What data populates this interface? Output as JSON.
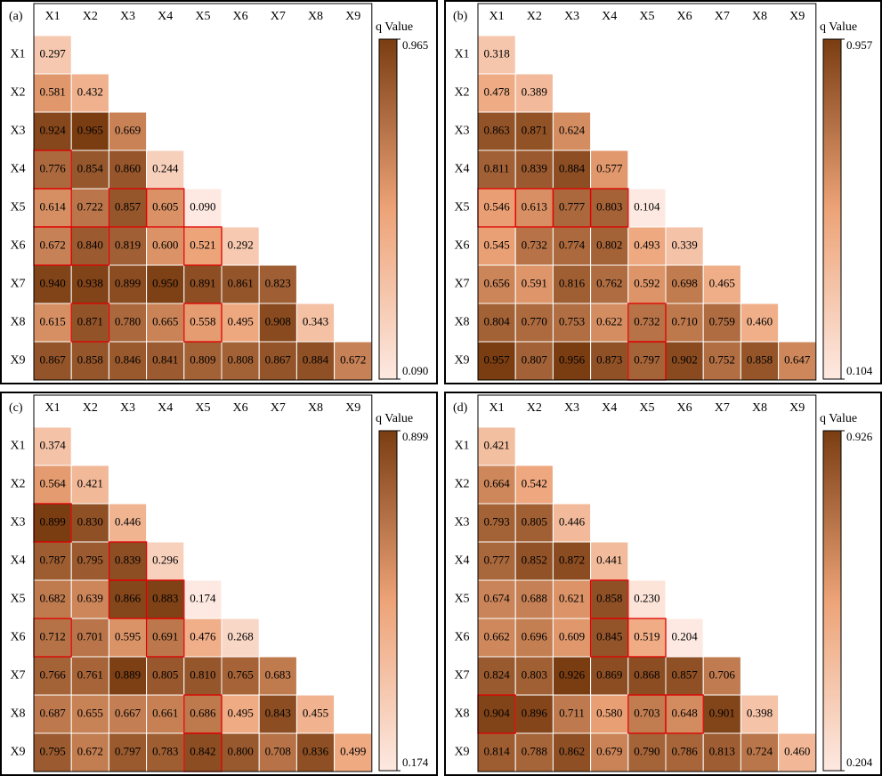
{
  "chart_data": [
    {
      "type": "heatmap",
      "label": "(a)",
      "categories": [
        "X1",
        "X2",
        "X3",
        "X4",
        "X5",
        "X6",
        "X7",
        "X8",
        "X9"
      ],
      "colorbar_label": "q Value",
      "colors": [
        "#fde9e1",
        "#eda377",
        "#7a3d12"
      ],
      "clim": [
        0.09,
        0.965
      ],
      "cticks": [
        {
          "value": 0.965,
          "label": "0.965"
        },
        {
          "value": 0.09,
          "label": "0.090"
        }
      ],
      "values": [
        [
          0.297
        ],
        [
          0.581,
          0.432
        ],
        [
          0.924,
          0.965,
          0.669
        ],
        [
          0.776,
          0.854,
          0.86,
          0.244
        ],
        [
          0.614,
          0.722,
          0.857,
          0.605,
          0.09
        ],
        [
          0.672,
          0.84,
          0.819,
          0.6,
          0.521,
          0.292
        ],
        [
          0.94,
          0.938,
          0.899,
          0.95,
          0.891,
          0.861,
          0.823
        ],
        [
          0.615,
          0.871,
          0.78,
          0.665,
          0.558,
          0.495,
          0.908,
          0.343
        ],
        [
          0.867,
          0.858,
          0.846,
          0.841,
          0.809,
          0.808,
          0.867,
          0.884,
          0.672
        ]
      ],
      "value_labels": [
        [
          "0.297"
        ],
        [
          "0.581",
          "0.432"
        ],
        [
          "0.924",
          "0.965",
          "0.669"
        ],
        [
          "0.776",
          "0.854",
          "0.860",
          "0.244"
        ],
        [
          "0.614",
          "0.722",
          "0.857",
          "0.605",
          "0.090"
        ],
        [
          "0.672",
          "0.840",
          "0.819",
          "0.600",
          "0.521",
          "0.292"
        ],
        [
          "0.940",
          "0.938",
          "0.899",
          "0.950",
          "0.891",
          "0.861",
          "0.823"
        ],
        [
          "0.615",
          "0.871",
          "0.780",
          "0.665",
          "0.558",
          "0.495",
          "0.908",
          "0.343"
        ],
        [
          "0.867",
          "0.858",
          "0.846",
          "0.841",
          "0.809",
          "0.808",
          "0.867",
          "0.884",
          "0.672"
        ]
      ],
      "highlighted": [
        [
          3,
          0
        ],
        [
          4,
          0
        ],
        [
          5,
          0
        ],
        [
          5,
          1
        ],
        [
          4,
          2
        ],
        [
          4,
          3
        ],
        [
          5,
          4
        ],
        [
          7,
          1
        ],
        [
          7,
          4
        ]
      ]
    },
    {
      "type": "heatmap",
      "label": "(b)",
      "categories": [
        "X1",
        "X2",
        "X3",
        "X4",
        "X5",
        "X6",
        "X7",
        "X8",
        "X9"
      ],
      "colorbar_label": "q Value",
      "colors": [
        "#fde9e1",
        "#eda377",
        "#7a3d12"
      ],
      "clim": [
        0.104,
        0.957
      ],
      "cticks": [
        0.957,
        0.104
      ],
      "values": [
        [
          0.318
        ],
        [
          0.478,
          0.389
        ],
        [
          0.863,
          0.871,
          0.624
        ],
        [
          0.811,
          0.839,
          0.884,
          0.577
        ],
        [
          0.546,
          0.613,
          0.777,
          0.803,
          0.104
        ],
        [
          0.545,
          0.732,
          0.774,
          0.802,
          0.493,
          0.339
        ],
        [
          0.656,
          0.591,
          0.816,
          0.762,
          0.592,
          0.698,
          0.465
        ],
        [
          0.804,
          0.77,
          0.753,
          0.622,
          0.732,
          0.71,
          0.759,
          0.46
        ],
        [
          0.957,
          0.807,
          0.956,
          0.873,
          0.797,
          0.902,
          0.752,
          0.858,
          0.647
        ]
      ],
      "value_labels": [
        [
          "0.318"
        ],
        [
          "0.478",
          "0.389"
        ],
        [
          "0.863",
          "0.871",
          "0.624"
        ],
        [
          "0.811",
          "0.839",
          "0.884",
          "0.577"
        ],
        [
          "0.546",
          "0.613",
          "0.777",
          "0.803",
          "0.104"
        ],
        [
          "0.545",
          "0.732",
          "0.774",
          "0.802",
          "0.493",
          "0.339"
        ],
        [
          "0.656",
          "0.591",
          "0.816",
          "0.762",
          "0.592",
          "0.698",
          "0.465"
        ],
        [
          "0.804",
          "0.770",
          "0.753",
          "0.622",
          "0.732",
          "0.710",
          "0.759",
          "0.460"
        ],
        [
          "0.957",
          "0.807",
          "0.956",
          "0.873",
          "0.797",
          "0.902",
          "0.752",
          "0.858",
          "0.647"
        ]
      ],
      "highlighted": [
        [
          4,
          0
        ],
        [
          4,
          1
        ],
        [
          4,
          2
        ],
        [
          4,
          3
        ],
        [
          7,
          4
        ],
        [
          8,
          4
        ]
      ]
    },
    {
      "type": "heatmap",
      "label": "(c)",
      "categories": [
        "X1",
        "X2",
        "X3",
        "X4",
        "X5",
        "X6",
        "X7",
        "X8",
        "X9"
      ],
      "colorbar_label": "q Value",
      "colors": [
        "#fde9e1",
        "#eda377",
        "#7a3d12"
      ],
      "clim": [
        0.174,
        0.899
      ],
      "cticks": [
        0.899,
        0.174
      ],
      "values": [
        [
          0.374
        ],
        [
          0.564,
          0.421
        ],
        [
          0.899,
          0.83,
          0.446
        ],
        [
          0.787,
          0.795,
          0.839,
          0.296
        ],
        [
          0.682,
          0.639,
          0.866,
          0.883,
          0.174
        ],
        [
          0.712,
          0.701,
          0.595,
          0.691,
          0.476,
          0.268
        ],
        [
          0.766,
          0.761,
          0.889,
          0.805,
          0.81,
          0.765,
          0.683
        ],
        [
          0.687,
          0.655,
          0.667,
          0.661,
          0.686,
          0.495,
          0.843,
          0.455
        ],
        [
          0.795,
          0.672,
          0.797,
          0.783,
          0.842,
          0.8,
          0.708,
          0.836,
          0.499
        ]
      ],
      "value_labels": [
        [
          "0.374"
        ],
        [
          "0.564",
          "0.421"
        ],
        [
          "0.899",
          "0.830",
          "0.446"
        ],
        [
          "0.787",
          "0.795",
          "0.839",
          "0.296"
        ],
        [
          "0.682",
          "0.639",
          "0.866",
          "0.883",
          "0.174"
        ],
        [
          "0.712",
          "0.701",
          "0.595",
          "0.691",
          "0.476",
          "0.268"
        ],
        [
          "0.766",
          "0.761",
          "0.889",
          "0.805",
          "0.810",
          "0.765",
          "0.683"
        ],
        [
          "0.687",
          "0.655",
          "0.667",
          "0.661",
          "0.686",
          "0.495",
          "0.843",
          "0.455"
        ],
        [
          "0.795",
          "0.672",
          "0.797",
          "0.783",
          "0.842",
          "0.800",
          "0.708",
          "0.836",
          "0.499"
        ]
      ],
      "highlighted": [
        [
          2,
          0
        ],
        [
          3,
          2
        ],
        [
          4,
          2
        ],
        [
          4,
          3
        ],
        [
          5,
          0
        ],
        [
          5,
          3
        ],
        [
          7,
          4
        ],
        [
          8,
          4
        ]
      ]
    },
    {
      "type": "heatmap",
      "label": "(d)",
      "categories": [
        "X1",
        "X2",
        "X3",
        "X4",
        "X5",
        "X6",
        "X7",
        "X8",
        "X9"
      ],
      "colorbar_label": "q Value",
      "colors": [
        "#fde9e1",
        "#eda377",
        "#7a3d12"
      ],
      "clim": [
        0.204,
        0.926
      ],
      "cticks": [
        0.926,
        0.204
      ],
      "values": [
        [
          0.421
        ],
        [
          0.664,
          0.542
        ],
        [
          0.793,
          0.805,
          0.446
        ],
        [
          0.777,
          0.852,
          0.872,
          0.441
        ],
        [
          0.674,
          0.688,
          0.621,
          0.858,
          0.23
        ],
        [
          0.662,
          0.696,
          0.609,
          0.845,
          0.519,
          0.204
        ],
        [
          0.824,
          0.803,
          0.926,
          0.869,
          0.868,
          0.857,
          0.706
        ],
        [
          0.904,
          0.896,
          0.711,
          0.58,
          0.703,
          0.648,
          0.901,
          0.398
        ],
        [
          0.814,
          0.788,
          0.862,
          0.679,
          0.79,
          0.786,
          0.813,
          0.724,
          0.46
        ]
      ],
      "value_labels": [
        [
          "0.421"
        ],
        [
          "0.664",
          "0.542"
        ],
        [
          "0.793",
          "0.805",
          "0.446"
        ],
        [
          "0.777",
          "0.852",
          "0.872",
          "0.441"
        ],
        [
          "0.674",
          "0.688",
          "0.621",
          "0.858",
          "0.230"
        ],
        [
          "0.662",
          "0.696",
          "0.609",
          "0.845",
          "0.519",
          "0.204"
        ],
        [
          "0.824",
          "0.803",
          "0.926",
          "0.869",
          "0.868",
          "0.857",
          "0.706"
        ],
        [
          "0.904",
          "0.896",
          "0.711",
          "0.580",
          "0.703",
          "0.648",
          "0.901",
          "0.398"
        ],
        [
          "0.814",
          "0.788",
          "0.862",
          "0.679",
          "0.790",
          "0.786",
          "0.813",
          "0.724",
          "0.460"
        ]
      ],
      "highlighted": [
        [
          4,
          3
        ],
        [
          5,
          3
        ],
        [
          5,
          4
        ],
        [
          7,
          0
        ],
        [
          7,
          4
        ],
        [
          7,
          5
        ]
      ]
    }
  ]
}
